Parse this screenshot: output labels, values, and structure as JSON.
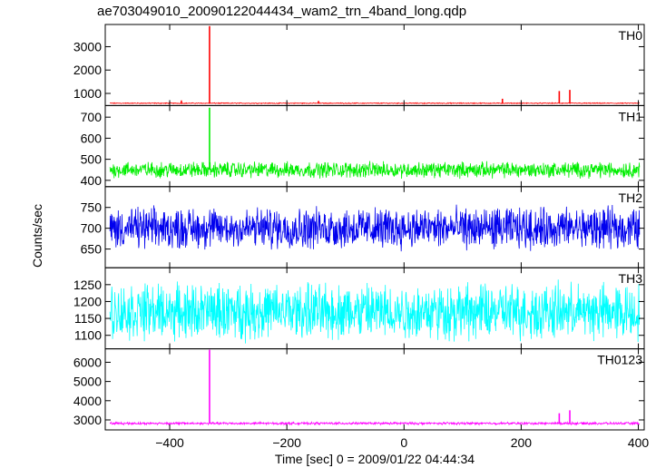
{
  "chart_data": {
    "type": "line",
    "title": "ae703049010_20090122044434_wam2_trn_4band_long.qdp",
    "xlabel": "Time [sec] 0 = 2009/01/22 04:44:34",
    "ylabel": "Counts/sec",
    "xlim": [
      -510,
      410
    ],
    "x_ticks": [
      -400,
      -200,
      0,
      200,
      400
    ],
    "x_tick_labels": [
      "−400",
      "−200",
      "0",
      "200",
      "400"
    ],
    "panels": [
      {
        "name": "TH0",
        "color": "#ff0000",
        "ylim": [
          480,
          3950
        ],
        "y_ticks": [
          1000,
          2000,
          3000
        ],
        "y_tick_labels": [
          "1000",
          "2000",
          "3000"
        ],
        "baseline": 580,
        "noise": 30,
        "spikes": [
          {
            "x": -380,
            "y": 700
          },
          {
            "x": -332,
            "y": 3880
          },
          {
            "x": -146,
            "y": 680
          },
          {
            "x": 168,
            "y": 770
          },
          {
            "x": 265,
            "y": 1100
          },
          {
            "x": 283,
            "y": 1150
          }
        ]
      },
      {
        "name": "TH1",
        "color": "#00ee00",
        "ylim": [
          370,
          755
        ],
        "y_ticks": [
          400,
          500,
          600,
          700
        ],
        "y_tick_labels": [
          "400",
          "500",
          "600",
          "700"
        ],
        "baseline": 450,
        "noise": 55,
        "spikes": [
          {
            "x": -332,
            "y": 745
          }
        ]
      },
      {
        "name": "TH2",
        "color": "#0000ee",
        "ylim": [
          605,
          800
        ],
        "y_ticks": [
          650,
          700,
          750
        ],
        "y_tick_labels": [
          "650",
          "700",
          "750"
        ],
        "baseline": 700,
        "noise": 72,
        "spikes": []
      },
      {
        "name": "TH3",
        "color": "#00ffff",
        "ylim": [
          1060,
          1300
        ],
        "y_ticks": [
          1100,
          1150,
          1200,
          1250
        ],
        "y_tick_labels": [
          "1100",
          "1150",
          "1200",
          "1250"
        ],
        "baseline": 1170,
        "noise": 120,
        "spikes": []
      },
      {
        "name": "TH0123",
        "color": "#ff00ff",
        "ylim": [
          2480,
          6700
        ],
        "y_ticks": [
          3000,
          4000,
          5000,
          6000
        ],
        "y_tick_labels": [
          "3000",
          "4000",
          "5000",
          "6000"
        ],
        "baseline": 2820,
        "noise": 90,
        "spikes": [
          {
            "x": -332,
            "y": 6650
          },
          {
            "x": 265,
            "y": 3350
          },
          {
            "x": 283,
            "y": 3500
          }
        ]
      }
    ],
    "grid": false,
    "legend": "none"
  }
}
